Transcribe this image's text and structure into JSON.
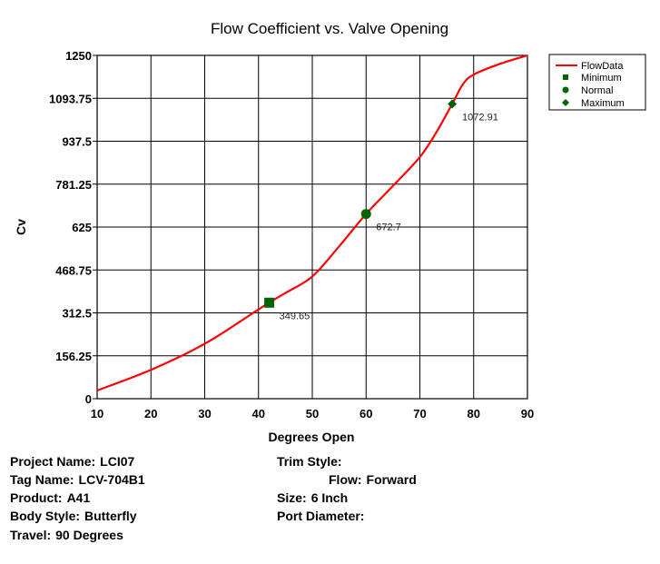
{
  "chart_data": {
    "type": "line",
    "title": "Flow Coefficient vs. Valve Opening",
    "xlabel": "Degrees Open",
    "ylabel": "Cv",
    "xlim": [
      10,
      90
    ],
    "ylim": [
      0,
      1250
    ],
    "xticks": [
      "10",
      "20",
      "30",
      "40",
      "50",
      "60",
      "70",
      "80",
      "90"
    ],
    "yticks": [
      "0",
      "156.25",
      "312.5",
      "468.75",
      "625",
      "781.25",
      "937.5",
      "1093.75",
      "1250"
    ],
    "grid": true,
    "legend_position": "top-right, outside plot",
    "series": [
      {
        "name": "FlowData",
        "color": "#ff0000",
        "x": [
          10,
          20,
          30,
          40,
          42,
          45,
          50,
          55,
          60,
          65,
          70,
          73,
          76,
          78,
          80,
          85,
          90
        ],
        "y": [
          30,
          105,
          200,
          325,
          350,
          385,
          445,
          555,
          672.7,
          775,
          880,
          968,
          1072.91,
          1145,
          1180,
          1220,
          1250
        ]
      }
    ],
    "markers": [
      {
        "name": "Minimum",
        "shape": "square",
        "color": "#006400",
        "x": 42,
        "y": 349.65,
        "label": "349.65"
      },
      {
        "name": "Normal",
        "shape": "circle",
        "color": "#006400",
        "x": 60,
        "y": 672.7,
        "label": "672.7"
      },
      {
        "name": "Maximum",
        "shape": "diamond",
        "color": "#006400",
        "x": 76,
        "y": 1072.91,
        "label": "1072.91"
      }
    ]
  },
  "info": {
    "left": [
      {
        "label": "Project Name:",
        "value": "LCI07"
      },
      {
        "label": "Tag Name:",
        "value": "LCV-704B1"
      },
      {
        "label": "Product:",
        "value": "A41"
      },
      {
        "label": "Body Style:",
        "value": "Butterfly"
      },
      {
        "label": "Travel:",
        "value": "90 Degrees"
      }
    ],
    "right": [
      {
        "label": "Trim Style:",
        "value": ""
      },
      {
        "label": "Flow:",
        "value": "Forward"
      },
      {
        "label": "Size:",
        "value": "6 Inch"
      },
      {
        "label": "Port Diameter:",
        "value": ""
      }
    ]
  }
}
